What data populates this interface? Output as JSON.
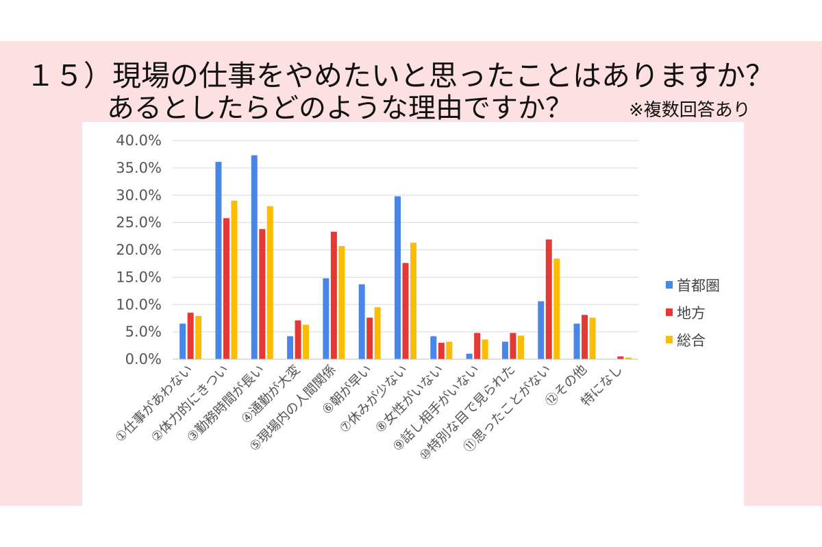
{
  "header": {
    "title_line1": "１５）現場の仕事をやめたいと思ったことはありますか？",
    "title_line2": "あるとしたらどのような理由ですか？",
    "note": "※複数回答あり"
  },
  "chart_data": {
    "type": "bar",
    "title": "現場の仕事をやめたいと思ったことはありますか？ あるとしたらどのような理由ですか？",
    "xlabel": "",
    "ylabel": "",
    "ylim": [
      0,
      40
    ],
    "y_ticks": [
      "0.0%",
      "5.0%",
      "10.0%",
      "15.0%",
      "20.0%",
      "25.0%",
      "30.0%",
      "35.0%",
      "40.0%"
    ],
    "grid": true,
    "legend_position": "right",
    "categories": [
      "①仕事があわない",
      "②体力的にきつい",
      "③勤務時間が長い",
      "④通勤が大変",
      "⑤現場内の人間関係",
      "⑥朝が早い",
      "⑦休みが少ない",
      "⑧女性がいない",
      "⑨話し相手がいない",
      "⑩特別な目で見られた",
      "⑪思ったことがない",
      "⑫その他",
      "特になし"
    ],
    "series": [
      {
        "name": "首都圏",
        "color": "#4a86e8",
        "values": [
          6.5,
          36.1,
          37.3,
          4.2,
          14.8,
          13.7,
          29.8,
          4.2,
          1.0,
          3.2,
          10.6,
          6.5,
          0.0
        ]
      },
      {
        "name": "地方",
        "color": "#e53935",
        "values": [
          8.5,
          25.8,
          23.8,
          7.1,
          23.3,
          7.6,
          17.6,
          3.0,
          4.8,
          4.8,
          21.9,
          8.1,
          0.5
        ]
      },
      {
        "name": "総合",
        "color": "#fbbc04",
        "values": [
          7.9,
          29.0,
          28.0,
          6.3,
          20.7,
          9.5,
          21.3,
          3.2,
          3.6,
          4.3,
          18.4,
          7.6,
          0.3
        ]
      }
    ]
  }
}
